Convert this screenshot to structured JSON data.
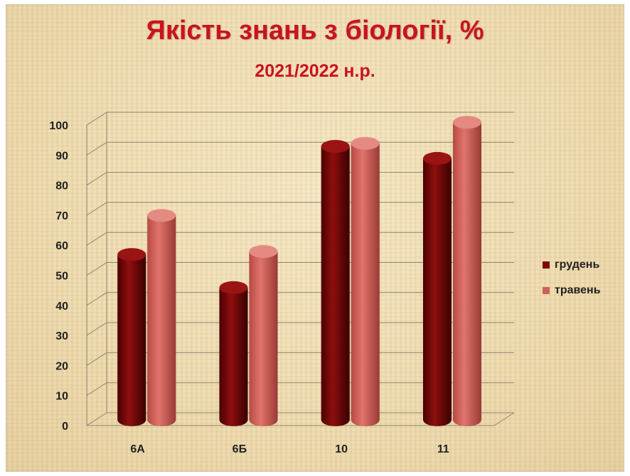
{
  "chart_data": {
    "type": "bar",
    "title": "Якість знань з біології, %",
    "subtitle": "2021/2022 н.р.",
    "categories": [
      "6А",
      "6Б",
      "10",
      "11"
    ],
    "series": [
      {
        "name": "грудень",
        "values": [
          55,
          44,
          91,
          87
        ],
        "color": "#7d0a0a"
      },
      {
        "name": "травень",
        "values": [
          68,
          56,
          92,
          99
        ],
        "color": "#d2605a"
      }
    ],
    "ylim": [
      0,
      100
    ],
    "yticks": [
      0,
      10,
      20,
      30,
      40,
      50,
      60,
      70,
      80,
      90,
      100
    ],
    "grid": true,
    "legend_position": "right",
    "style": "3d-cylinder"
  }
}
